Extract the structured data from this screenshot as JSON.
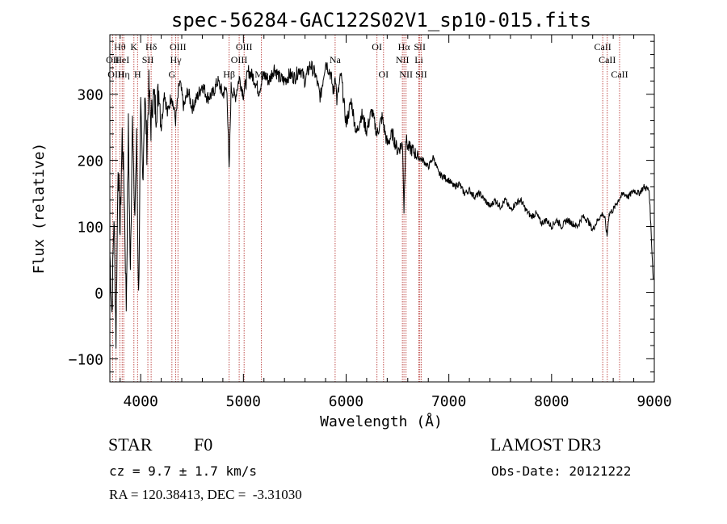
{
  "chart_data": {
    "type": "line",
    "title": "spec-56284-GAC122S02V1_sp10-015.fits",
    "xlabel": "Wavelength (Å)",
    "ylabel": "Flux (relative)",
    "xlim": [
      3700,
      9000
    ],
    "ylim": [
      -135,
      390
    ],
    "xticks": [
      4000,
      5000,
      6000,
      7000,
      8000,
      9000
    ],
    "yticks": [
      -100,
      0,
      100,
      200,
      300
    ],
    "xtick_labels": [
      "4000",
      "5000",
      "6000",
      "7000",
      "8000",
      "9000"
    ],
    "ytick_labels": [
      "−100",
      "0",
      "100",
      "200",
      "300"
    ],
    "series": [
      {
        "name": "flux",
        "x": [
          3700,
          3720,
          3740,
          3760,
          3780,
          3800,
          3820,
          3840,
          3860,
          3880,
          3900,
          3920,
          3940,
          3960,
          3980,
          4000,
          4020,
          4040,
          4060,
          4080,
          4100,
          4120,
          4150,
          4180,
          4200,
          4230,
          4260,
          4300,
          4340,
          4380,
          4420,
          4460,
          4500,
          4550,
          4600,
          4650,
          4700,
          4750,
          4800,
          4840,
          4861,
          4880,
          4920,
          4960,
          5000,
          5050,
          5100,
          5150,
          5200,
          5250,
          5300,
          5350,
          5400,
          5450,
          5500,
          5550,
          5600,
          5650,
          5700,
          5750,
          5800,
          5850,
          5880,
          5893,
          5910,
          5950,
          6000,
          6050,
          6100,
          6150,
          6200,
          6250,
          6300,
          6350,
          6400,
          6450,
          6500,
          6550,
          6563,
          6580,
          6600,
          6650,
          6700,
          6750,
          6800,
          6850,
          6900,
          6950,
          7000,
          7050,
          7100,
          7150,
          7200,
          7250,
          7300,
          7350,
          7400,
          7450,
          7500,
          7550,
          7600,
          7650,
          7700,
          7750,
          7800,
          7850,
          7900,
          7950,
          8000,
          8050,
          8100,
          8150,
          8200,
          8250,
          8300,
          8350,
          8400,
          8450,
          8500,
          8520,
          8540,
          8560,
          8600,
          8650,
          8700,
          8750,
          8800,
          8850,
          8900,
          8950,
          8990
        ],
        "y": [
          60,
          -30,
          120,
          -70,
          200,
          90,
          240,
          150,
          -20,
          250,
          20,
          290,
          100,
          230,
          -10,
          270,
          170,
          300,
          220,
          310,
          250,
          300,
          275,
          310,
          250,
          305,
          270,
          300,
          260,
          320,
          280,
          305,
          280,
          295,
          315,
          295,
          300,
          320,
          300,
          310,
          180,
          310,
          295,
          325,
          300,
          335,
          325,
          305,
          330,
          320,
          340,
          325,
          320,
          330,
          325,
          340,
          320,
          345,
          330,
          295,
          350,
          330,
          300,
          335,
          290,
          330,
          255,
          290,
          240,
          270,
          245,
          275,
          240,
          265,
          225,
          240,
          215,
          225,
          125,
          235,
          220,
          215,
          205,
          200,
          190,
          205,
          180,
          175,
          170,
          160,
          165,
          150,
          155,
          145,
          150,
          140,
          130,
          140,
          130,
          140,
          125,
          135,
          140,
          125,
          115,
          120,
          105,
          110,
          100,
          110,
          100,
          110,
          105,
          100,
          115,
          110,
          95,
          110,
          120,
          110,
          85,
          120,
          125,
          140,
          150,
          145,
          155,
          150,
          160,
          155,
          20
        ]
      }
    ],
    "lines": [
      {
        "name": "Hθ",
        "x": 3798,
        "row": 1
      },
      {
        "name": "OII",
        "x": 3727,
        "row": 2
      },
      {
        "name": "OIII",
        "x": 3760,
        "row": 3
      },
      {
        "name": "HeI",
        "x": 3820,
        "row": 2
      },
      {
        "name": "Hη",
        "x": 3835,
        "row": 3
      },
      {
        "name": "K",
        "x": 3934,
        "row": 1
      },
      {
        "name": "H",
        "x": 3970,
        "row": 3
      },
      {
        "name": "SII",
        "x": 4070,
        "row": 2
      },
      {
        "name": "Hδ",
        "x": 4102,
        "row": 1
      },
      {
        "name": "G",
        "x": 4304,
        "row": 3
      },
      {
        "name": "Hγ",
        "x": 4341,
        "row": 2
      },
      {
        "name": "OIII",
        "x": 4363,
        "row": 1
      },
      {
        "name": "Hβ",
        "x": 4861,
        "row": 3
      },
      {
        "name": "OIII",
        "x": 4959,
        "row": 2
      },
      {
        "name": "OIII",
        "x": 5007,
        "row": 1
      },
      {
        "name": "Mg",
        "x": 5175,
        "row": 3
      },
      {
        "name": "Na",
        "x": 5893,
        "row": 2
      },
      {
        "name": "OI",
        "x": 6300,
        "row": 1
      },
      {
        "name": "OI",
        "x": 6364,
        "row": 3
      },
      {
        "name": "NII",
        "x": 6548,
        "row": 2
      },
      {
        "name": "Hα",
        "x": 6563,
        "row": 1
      },
      {
        "name": "NII",
        "x": 6583,
        "row": 3
      },
      {
        "name": "SII",
        "x": 6717,
        "row": 1
      },
      {
        "name": "Li",
        "x": 6708,
        "row": 2
      },
      {
        "name": "SII",
        "x": 6731,
        "row": 3
      },
      {
        "name": "CaII",
        "x": 8498,
        "row": 1
      },
      {
        "name": "CaII",
        "x": 8542,
        "row": 2
      },
      {
        "name": "CaII",
        "x": 8662,
        "row": 3
      }
    ]
  },
  "info": {
    "class": "STAR",
    "subclass": "F0",
    "survey": "LAMOST DR3",
    "cz": "cz = 9.7 ± 1.7 km/s",
    "obs_date": "Obs-Date: 20121222",
    "coords": "RA = 120.38413, DEC =  -3.31030"
  },
  "colors": {
    "line": "#000000",
    "marker": "#c0504d"
  }
}
